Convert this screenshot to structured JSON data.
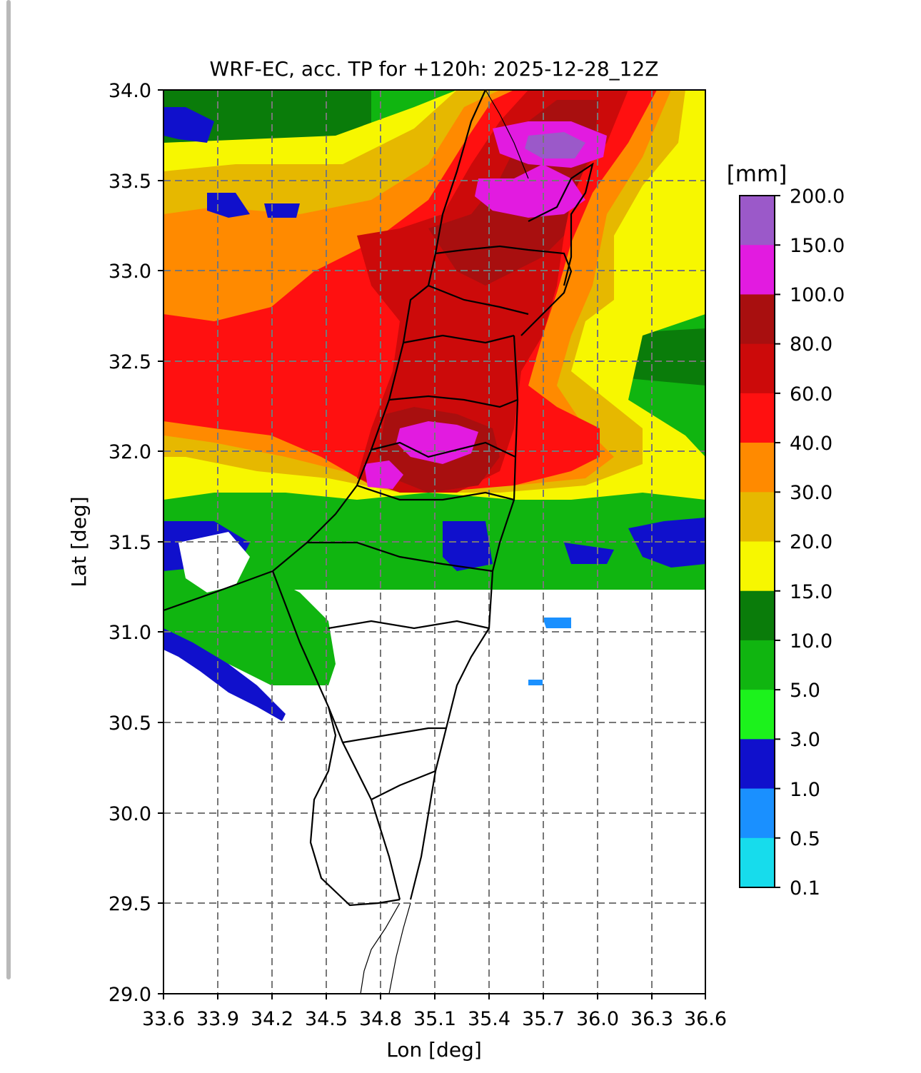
{
  "title": "WRF-EC, acc. TP for +120h: 2025-12-28_12Z",
  "x_axis": {
    "label": "Lon [deg]",
    "ticks": [
      "33.6",
      "33.9",
      "34.2",
      "34.5",
      "34.8",
      "35.1",
      "35.4",
      "35.7",
      "36.0",
      "36.3",
      "36.6"
    ],
    "range": [
      33.6,
      36.6
    ]
  },
  "y_axis": {
    "label": "Lat [deg]",
    "ticks": [
      "34.0",
      "33.5",
      "33.0",
      "32.5",
      "32.0",
      "31.5",
      "31.0",
      "30.5",
      "30.0",
      "29.5",
      "29.0"
    ],
    "range": [
      29.0,
      34.0
    ]
  },
  "grid": "dashed",
  "colorbar": {
    "unit": "[mm]",
    "levels": [
      "200.0",
      "150.0",
      "100.0",
      "80.0",
      "60.0",
      "40.0",
      "30.0",
      "20.0",
      "15.0",
      "10.0",
      "5.0",
      "3.0",
      "1.0",
      "0.5",
      "0.1"
    ],
    "colors_top_to_bottom": [
      "#9b59c9",
      "#e21be0",
      "#a80f0f",
      "#cc0a0a",
      "#ff1010",
      "#ff8a00",
      "#e6b800",
      "#f7f700",
      "#0a7c0a",
      "#10b510",
      "#1cf21c",
      "#1010cc",
      "#1a90ff",
      "#17dcec"
    ]
  }
}
